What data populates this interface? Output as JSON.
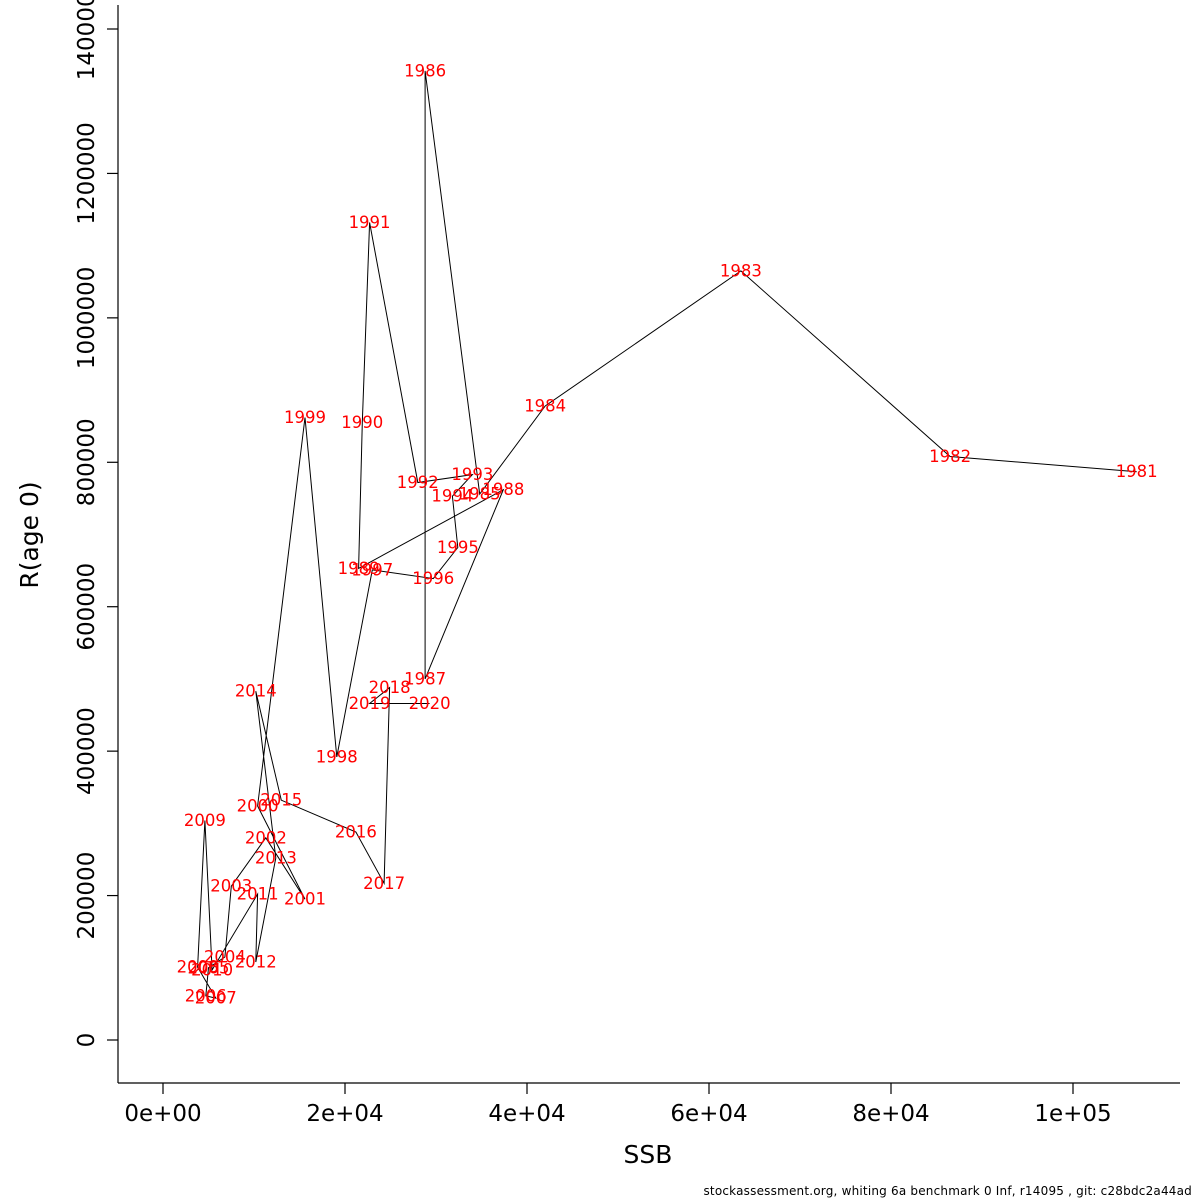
{
  "chart_data": {
    "type": "scatter",
    "title": "",
    "xlabel": "SSB",
    "ylabel": "R(age 0)",
    "xlim": [
      0,
      110000
    ],
    "ylim": [
      0,
      1400000
    ],
    "grid": false,
    "legend": "none",
    "line_color": "#000000",
    "point_label_color": "#ff0000",
    "x_ticks": {
      "values": [
        0,
        20000,
        40000,
        60000,
        80000,
        100000
      ],
      "labels": [
        "0e+00",
        "2e+04",
        "4e+04",
        "6e+04",
        "8e+04",
        "1e+05"
      ]
    },
    "y_ticks": {
      "values": [
        0,
        200000,
        400000,
        600000,
        800000,
        1000000,
        1200000,
        1400000
      ],
      "labels": [
        "0",
        "200000",
        "400000",
        "600000",
        "800000",
        "1000000",
        "1200000",
        "1400000"
      ]
    },
    "points": [
      {
        "year": "1981",
        "ssb": 107000,
        "r": 787000
      },
      {
        "year": "1982",
        "ssb": 86500,
        "r": 808000
      },
      {
        "year": "1983",
        "ssb": 63500,
        "r": 1065000
      },
      {
        "year": "1984",
        "ssb": 42000,
        "r": 878000
      },
      {
        "year": "1985",
        "ssb": 34800,
        "r": 756000
      },
      {
        "year": "1986",
        "ssb": 28800,
        "r": 1342000
      },
      {
        "year": "1987",
        "ssb": 28800,
        "r": 500000
      },
      {
        "year": "1988",
        "ssb": 37400,
        "r": 762000
      },
      {
        "year": "1989",
        "ssb": 21500,
        "r": 653000
      },
      {
        "year": "1990",
        "ssb": 21900,
        "r": 855000
      },
      {
        "year": "1991",
        "ssb": 22700,
        "r": 1132000
      },
      {
        "year": "1992",
        "ssb": 28000,
        "r": 772000
      },
      {
        "year": "1993",
        "ssb": 34000,
        "r": 783000
      },
      {
        "year": "1994",
        "ssb": 31800,
        "r": 753000
      },
      {
        "year": "1995",
        "ssb": 32400,
        "r": 682000
      },
      {
        "year": "1996",
        "ssb": 29700,
        "r": 639000
      },
      {
        "year": "1997",
        "ssb": 23000,
        "r": 651000
      },
      {
        "year": "1998",
        "ssb": 19100,
        "r": 392000
      },
      {
        "year": "1999",
        "ssb": 15600,
        "r": 862000
      },
      {
        "year": "2000",
        "ssb": 10400,
        "r": 324000
      },
      {
        "year": "2001",
        "ssb": 15600,
        "r": 195000
      },
      {
        "year": "2002",
        "ssb": 11300,
        "r": 280000
      },
      {
        "year": "2003",
        "ssb": 7500,
        "r": 213000
      },
      {
        "year": "2004",
        "ssb": 6800,
        "r": 115000
      },
      {
        "year": "2005",
        "ssb": 5000,
        "r": 100000
      },
      {
        "year": "2006",
        "ssb": 4700,
        "r": 61000
      },
      {
        "year": "2007",
        "ssb": 5800,
        "r": 58000
      },
      {
        "year": "2008",
        "ssb": 3800,
        "r": 101000
      },
      {
        "year": "2009",
        "ssb": 4600,
        "r": 304000
      },
      {
        "year": "2010",
        "ssb": 5400,
        "r": 97000
      },
      {
        "year": "2011",
        "ssb": 10400,
        "r": 202000
      },
      {
        "year": "2012",
        "ssb": 10200,
        "r": 108000
      },
      {
        "year": "2013",
        "ssb": 12400,
        "r": 252000
      },
      {
        "year": "2014",
        "ssb": 10200,
        "r": 483000
      },
      {
        "year": "2015",
        "ssb": 13000,
        "r": 332000
      },
      {
        "year": "2016",
        "ssb": 21200,
        "r": 288000
      },
      {
        "year": "2017",
        "ssb": 24300,
        "r": 217000
      },
      {
        "year": "2018",
        "ssb": 24900,
        "r": 488000
      },
      {
        "year": "2019",
        "ssb": 22700,
        "r": 466000
      },
      {
        "year": "2020",
        "ssb": 29300,
        "r": 466000
      }
    ]
  },
  "footer": {
    "note": "stockassessment.org, whiting 6a benchmark 0 Inf, r14095 , git: c28bdc2a44ad"
  }
}
